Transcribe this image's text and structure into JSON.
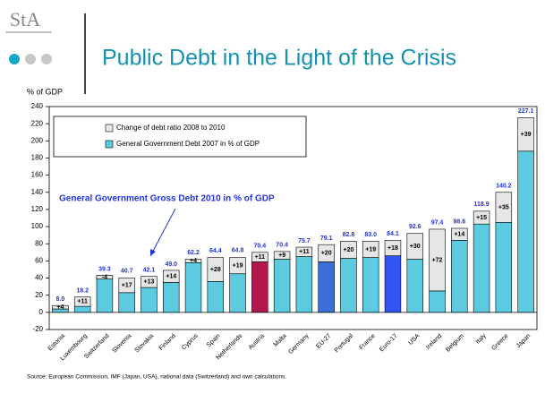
{
  "logo": "StA",
  "chart_data": {
    "type": "stacked_bar",
    "title": "Public Debt in the Light of the Crisis",
    "y_label": "% of GDP",
    "annotation": "General Government Gross Debt 2010 in % of GDP",
    "source": "Source: European Commission, IMF (Japan, USA), national data (Switzerland) and own calculations.",
    "categories": [
      "Estonia",
      "Luxembourg",
      "Switzerland",
      "Slovenia",
      "Slovakia",
      "Finland",
      "Cyprus",
      "Spain",
      "Netherlands",
      "Austria",
      "Malta",
      "Germany",
      "EU-27",
      "Portugal",
      "France",
      "Euro-17",
      "USA",
      "Ireland",
      "Belgium",
      "Italy",
      "Greece",
      "Japan"
    ],
    "series": [
      {
        "name": "General Government Debt 2007 in % of GDP",
        "color": "#5ccbe0",
        "colors": [
          "#5ccbe0",
          "#5ccbe0",
          "#5ccbe0",
          "#5ccbe0",
          "#5ccbe0",
          "#5ccbe0",
          "#5ccbe0",
          "#5ccbe0",
          "#5ccbe0",
          "#b3174b",
          "#5ccbe0",
          "#5ccbe0",
          "#3a6fd8",
          "#5ccbe0",
          "#5ccbe0",
          "#3354f0",
          "#5ccbe0",
          "#5ccbe0",
          "#5ccbe0",
          "#5ccbe0",
          "#5ccbe0",
          "#5ccbe0"
        ],
        "values": [
          4,
          7,
          43,
          23,
          29,
          35,
          58,
          36,
          45,
          59,
          62,
          65,
          59,
          63,
          64,
          66,
          62,
          25,
          84,
          103,
          105,
          188
        ]
      },
      {
        "name": "Change of debt ratio 2008 to 2010",
        "color": "#e6e6e6",
        "values": [
          4,
          11,
          -4,
          17,
          13,
          14,
          4,
          28,
          19,
          11,
          9,
          11,
          20,
          20,
          19,
          18,
          30,
          72,
          14,
          15,
          35,
          39
        ],
        "value_labels": [
          "+4",
          "+11",
          "-4",
          "+17",
          "+13",
          "+14",
          "+4",
          "+28",
          "+19",
          "+11",
          "+9",
          "+11",
          "+20",
          "+20",
          "+19",
          "+18",
          "+30",
          "+72",
          "+14",
          "+15",
          "+35",
          "+39"
        ]
      }
    ],
    "totals": [
      8.0,
      18.2,
      39.3,
      40.7,
      42.1,
      49.0,
      62.2,
      64.4,
      64.8,
      70.4,
      70.4,
      75.7,
      79.1,
      82.8,
      83.0,
      84.1,
      92.6,
      97.4,
      98.6,
      118.9,
      140.2,
      227.1
    ],
    "total_labels": [
      "8.0",
      "18.2",
      "39.3",
      "40.7",
      "42.1",
      "49.0",
      "62.2",
      "64.4",
      "64.8",
      "70.4",
      "70.4",
      "75.7",
      "79.1",
      "82.8",
      "83.0",
      "84.1",
      "92.6",
      "97.4",
      "98.6",
      "118.9",
      "140.2",
      "227.1"
    ],
    "total_color": "#2233dd",
    "ylim": [
      -20,
      240
    ],
    "yticks": [
      -20,
      0,
      20,
      40,
      60,
      80,
      100,
      120,
      140,
      160,
      180,
      200,
      220,
      240
    ]
  }
}
